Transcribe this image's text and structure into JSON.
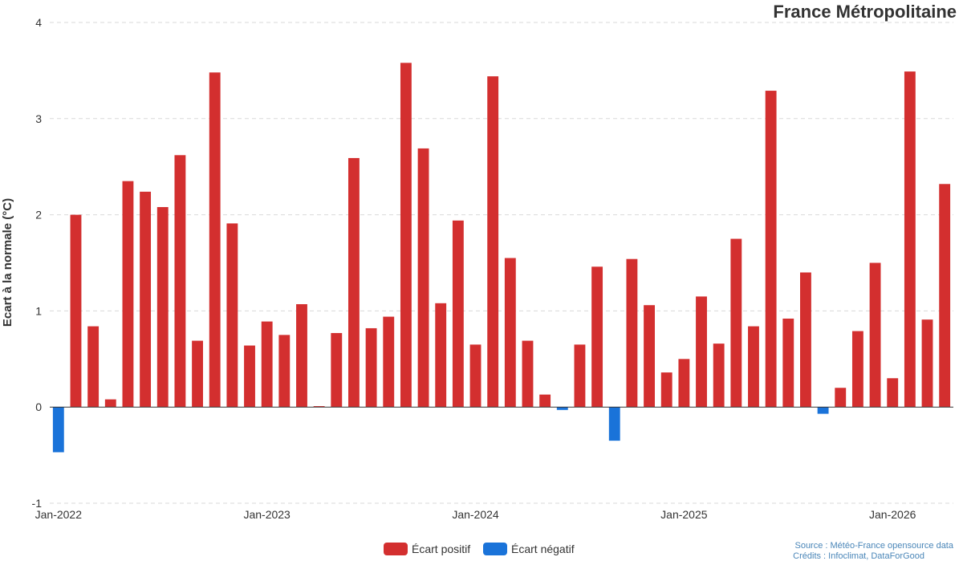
{
  "chart_data": {
    "type": "bar",
    "title": "France Métropolitaine",
    "ylabel": "Ecart à la normale (°C)",
    "xlabel": "",
    "ylim": [
      -1,
      4
    ],
    "yticks": [
      -1,
      0,
      1,
      2,
      3,
      4
    ],
    "grid": true,
    "xtick_labels": [
      "Jan-2022",
      "Jan-2023",
      "Jan-2024",
      "Jan-2025",
      "Jan-2026"
    ],
    "legend": {
      "placement": "bottom-center",
      "entries": [
        {
          "label": "Écart positif",
          "color": "#d32f2f"
        },
        {
          "label": "Écart négatif",
          "color": "#1a73d9"
        }
      ]
    },
    "start_month": "2022-01",
    "values": [
      -0.47,
      2.0,
      0.84,
      0.08,
      2.35,
      2.24,
      2.08,
      2.62,
      0.69,
      3.48,
      1.91,
      0.64,
      0.89,
      0.75,
      1.07,
      0.01,
      0.77,
      2.59,
      0.82,
      0.94,
      3.58,
      2.69,
      1.08,
      1.94,
      0.65,
      3.44,
      1.55,
      0.69,
      0.13,
      -0.03,
      0.65,
      1.46,
      -0.35,
      1.54,
      1.06,
      0.36,
      0.5,
      1.15,
      0.66,
      1.75,
      0.84,
      3.29,
      0.92,
      1.4,
      -0.07,
      0.2,
      0.79,
      1.5,
      0.3,
      3.49,
      0.91,
      2.32
    ],
    "colors": {
      "positive": "#d32f2f",
      "negative": "#1a73d9",
      "grid": "#d9d9d9",
      "axis": "#333333"
    },
    "source_lines": [
      "Source : Météo-France opensource data",
      "Crédits : Infoclimat, DataForGood"
    ]
  }
}
